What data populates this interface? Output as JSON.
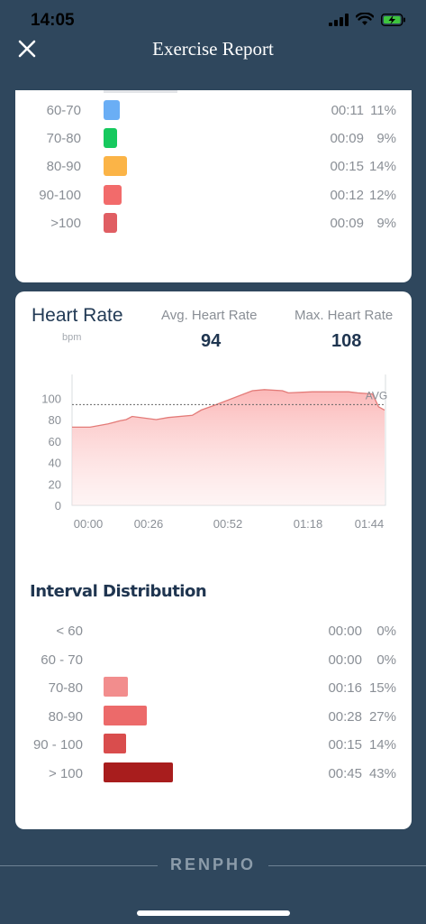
{
  "status": {
    "time": "14:05"
  },
  "nav": {
    "title": "Exercise Report"
  },
  "zones": [
    {
      "label": "60-70",
      "time": "00:11",
      "pct": "11%",
      "color": "#6aaef5"
    },
    {
      "label": "70-80",
      "time": "00:09",
      "pct": "9%",
      "color": "#16c95e"
    },
    {
      "label": "80-90",
      "time": "00:15",
      "pct": "14%",
      "color": "#fbb447"
    },
    {
      "label": "90-100",
      "time": "00:12",
      "pct": "12%",
      "color": "#f26b6b"
    },
    {
      "label": ">100",
      "time": "00:09",
      "pct": "9%",
      "color": "#e05e63"
    }
  ],
  "heart_rate": {
    "title": "Heart Rate",
    "unit": "bpm",
    "avg_label": "Avg. Heart Rate",
    "avg_value": "94",
    "max_label": "Max. Heart Rate",
    "max_value": "108",
    "avg_line_label": "AVG"
  },
  "chart_data": {
    "type": "area",
    "x_tick_labels": [
      "00:00",
      "00:26",
      "00:52",
      "01:18",
      "01:44"
    ],
    "x_ticks_seconds": [
      0,
      26,
      52,
      78,
      104
    ],
    "y_tick_labels": [
      "100",
      "80",
      "60",
      "40",
      "20",
      "0"
    ],
    "ylim": [
      0,
      100
    ],
    "xlim": [
      0,
      104
    ],
    "avg": 94,
    "x": [
      0,
      6,
      12,
      16,
      18,
      20,
      28,
      32,
      40,
      43,
      45,
      47,
      60,
      64,
      70,
      72,
      80,
      84,
      88,
      92,
      95,
      100,
      101,
      102,
      104
    ],
    "y": [
      73,
      73,
      76,
      79,
      80,
      83,
      80,
      82,
      84,
      89,
      91,
      93,
      107,
      108,
      107,
      105,
      106,
      106,
      106,
      106,
      105,
      104,
      98,
      92,
      89
    ],
    "grid": false,
    "line_color": "#e37b78",
    "fill_color": "#f9b7b7"
  },
  "interval": {
    "title": "Interval Distribution",
    "rows": [
      {
        "label": "< 60",
        "time": "00:00",
        "pct": "0%",
        "fraction": 0,
        "color": "#f38b8b"
      },
      {
        "label": "60 - 70",
        "time": "00:00",
        "pct": "0%",
        "fraction": 0,
        "color": "#f38b8b"
      },
      {
        "label": "70-80",
        "time": "00:16",
        "pct": "15%",
        "fraction": 0.15,
        "color": "#f28d8d"
      },
      {
        "label": "80-90",
        "time": "00:28",
        "pct": "27%",
        "fraction": 0.27,
        "color": "#ec6a6a"
      },
      {
        "label": "90 - 100",
        "time": "00:15",
        "pct": "14%",
        "fraction": 0.14,
        "color": "#d94d4d"
      },
      {
        "label": "> 100",
        "time": "00:45",
        "pct": "43%",
        "fraction": 0.43,
        "color": "#a81d1d"
      }
    ]
  },
  "footer": {
    "logo": "RENPHO"
  }
}
